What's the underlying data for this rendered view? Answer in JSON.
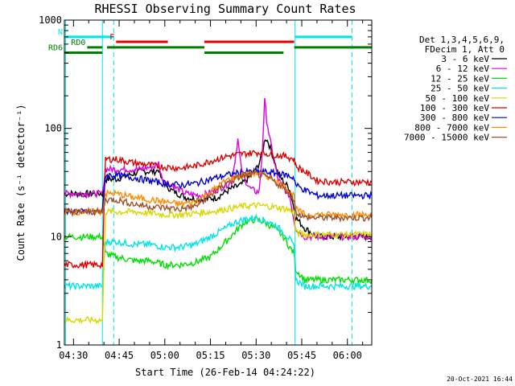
{
  "chart_data": {
    "type": "line",
    "title": "RHESSI Observing Summary Count Rates",
    "xlabel": "Start Time (26-Feb-14 04:24:22)",
    "ylabel": "Count Rate (s⁻¹ detector⁻¹)",
    "yscale": "log",
    "ylim": [
      1,
      1000
    ],
    "xlim_minutes": [
      -3,
      98
    ],
    "x_tick_labels": [
      "04:30",
      "04:45",
      "05:00",
      "05:15",
      "05:30",
      "05:45",
      "06:00"
    ],
    "x_tick_minutes": [
      0,
      15,
      30,
      45,
      60,
      75,
      90
    ],
    "y_tick_labels": [
      "1",
      "10",
      "100",
      "1000"
    ],
    "y_tick_values": [
      1,
      10,
      100,
      1000
    ],
    "legend_header": [
      "Det 1,3,4,5,6,9,",
      "FDecim 1, Att 0"
    ],
    "legend_placement": "right",
    "timestamp": "20-Oct-2021 16:44",
    "vertical_lines": [
      {
        "minute": -2.6,
        "style": "solid",
        "color": "#00e5e5"
      },
      {
        "minute": 9.5,
        "style": "solid",
        "color": "#00e5e5"
      },
      {
        "minute": 13.2,
        "style": "dashed",
        "color": "#00e5e5"
      },
      {
        "minute": 72.8,
        "style": "solid",
        "color": "#00e5e5"
      },
      {
        "minute": 91.5,
        "style": "dashed",
        "color": "#00e5e5"
      }
    ],
    "flag_bars": [
      {
        "label": "N",
        "color": "#00e5e5",
        "segments": [
          [
            -3,
            13.2
          ],
          [
            72.8,
            91.5
          ]
        ],
        "y_value": 700
      },
      {
        "label": "F",
        "color": "#e00000",
        "segments": [
          [
            14,
            31
          ],
          [
            43,
            72.5
          ]
        ],
        "y_value": 630
      },
      {
        "label": "RD0",
        "color": "#008000",
        "segments": [
          [
            4.5,
            9.5
          ],
          [
            11,
            43
          ],
          [
            72.5,
            98
          ]
        ],
        "y_value": 560
      },
      {
        "label": "RD6",
        "color": "#008000",
        "segments": [
          [
            -3,
            9.5
          ],
          [
            43,
            69
          ]
        ],
        "y_value": 500
      }
    ],
    "series": [
      {
        "name": "3 - 6 keV",
        "color": "#000000",
        "x": [
          -3,
          9.5,
          10.5,
          14,
          22,
          27,
          28,
          29,
          32,
          37,
          42,
          47,
          52,
          55,
          58,
          60,
          61,
          62,
          63,
          64,
          64.7,
          66,
          67,
          69,
          71,
          72.5,
          73,
          76,
          80,
          85,
          90,
          95,
          98
        ],
        "y": [
          25,
          25,
          34,
          34,
          40,
          40,
          42,
          33,
          27,
          23,
          22,
          23,
          28,
          30,
          36,
          42,
          48,
          60,
          82,
          75,
          65,
          50,
          40,
          32,
          28,
          18,
          15,
          12,
          10,
          10,
          10,
          10,
          10
        ]
      },
      {
        "name": "6 - 12 keV",
        "color": "#e000e0",
        "x": [
          -3,
          9.5,
          10.5,
          14,
          22,
          27,
          28,
          29,
          32,
          37,
          42,
          47,
          52,
          53,
          54,
          55,
          56,
          58,
          60,
          61,
          62,
          62.8,
          63.5,
          64.5,
          66,
          67,
          69,
          71,
          72.5,
          73,
          76,
          80,
          85,
          90,
          95,
          98
        ],
        "y": [
          25,
          25,
          42,
          42,
          42,
          45,
          48,
          35,
          30,
          25,
          24,
          27,
          32,
          50,
          80,
          45,
          35,
          28,
          26,
          26,
          60,
          180,
          120,
          80,
          50,
          35,
          28,
          24,
          14,
          12,
          10,
          10,
          10,
          10,
          10,
          10
        ]
      },
      {
        "name": "12 - 25 keV",
        "color": "#00e000",
        "x": [
          -3,
          9.5,
          10.5,
          14,
          20,
          25,
          30,
          35,
          40,
          45,
          50,
          53,
          56,
          60,
          63,
          66,
          69,
          71,
          72.5,
          73,
          76,
          80,
          85,
          90,
          95,
          98
        ],
        "y": [
          10,
          10,
          7,
          6.5,
          6,
          6,
          5.5,
          5.5,
          5.8,
          6.5,
          9,
          11,
          13.5,
          14.5,
          13.5,
          12,
          10,
          8,
          7,
          5,
          4,
          4,
          4,
          4,
          4,
          4
        ]
      },
      {
        "name": "25 - 50 keV",
        "color": "#00e5e5",
        "x": [
          -3,
          9.5,
          10.5,
          14,
          20,
          25,
          30,
          35,
          40,
          45,
          50,
          53,
          56,
          60,
          63,
          66,
          69,
          71,
          72.5,
          73,
          76,
          80,
          85,
          90,
          95,
          98
        ],
        "y": [
          3.5,
          3.5,
          9,
          9,
          8.5,
          8.5,
          8,
          8,
          8.5,
          10,
          12,
          13.5,
          14.5,
          15,
          14,
          13,
          11,
          9.5,
          8,
          4,
          3.5,
          3.5,
          3.5,
          3.5,
          3.5,
          3.5
        ]
      },
      {
        "name": "50 - 100 keV",
        "color": "#d8d800",
        "x": [
          -3,
          9.5,
          10.5,
          14,
          20,
          25,
          30,
          35,
          40,
          45,
          50,
          55,
          60,
          65,
          70,
          72.5,
          73,
          76,
          80,
          85,
          90,
          95,
          98
        ],
        "y": [
          1.7,
          1.7,
          17,
          17,
          17,
          16.5,
          16,
          16,
          16.5,
          17,
          18,
          19,
          19.5,
          19,
          18,
          17,
          11,
          10.5,
          10.5,
          10.5,
          10.5,
          10.5,
          10.5
        ]
      },
      {
        "name": "100 - 300 keV",
        "color": "#e00000",
        "x": [
          -3,
          9.5,
          10.5,
          14,
          20,
          25,
          30,
          35,
          40,
          45,
          50,
          55,
          60,
          65,
          70,
          72.5,
          73,
          76,
          80,
          85,
          90,
          95,
          98
        ],
        "y": [
          5.5,
          5.5,
          52,
          52,
          48,
          46,
          44,
          43,
          45,
          50,
          55,
          58,
          60,
          58,
          55,
          52,
          45,
          40,
          33,
          32,
          32,
          32,
          32
        ]
      },
      {
        "name": "300 - 800 keV",
        "color": "#0000d0",
        "x": [
          -3,
          9.5,
          10.5,
          14,
          20,
          25,
          30,
          35,
          40,
          45,
          50,
          55,
          60,
          65,
          70,
          72.5,
          73,
          76,
          80,
          85,
          90,
          95,
          98
        ],
        "y": [
          17,
          17,
          37,
          37,
          35,
          33,
          31,
          30,
          31,
          34,
          37,
          39,
          40,
          39,
          37,
          35,
          30,
          27,
          24,
          24,
          24,
          24,
          24
        ]
      },
      {
        "name": "800 - 7000 keV",
        "color": "#ff8c00",
        "x": [
          -3,
          9.5,
          10.5,
          14,
          20,
          25,
          30,
          35,
          40,
          45,
          50,
          55,
          60,
          65,
          70,
          72.5,
          73,
          76,
          80,
          85,
          90,
          95,
          98
        ],
        "y": [
          17,
          17,
          25,
          25,
          23,
          22,
          21,
          20,
          21,
          26,
          33,
          37,
          39,
          35,
          28,
          24,
          18,
          16,
          16,
          16,
          16,
          16,
          16
        ]
      },
      {
        "name": "7000 - 15000 keV",
        "color": "#a0522d",
        "x": [
          -3,
          9.5,
          10.5,
          14,
          20,
          25,
          30,
          35,
          40,
          45,
          50,
          55,
          60,
          65,
          70,
          72.5,
          73,
          76,
          80,
          85,
          90,
          95,
          98
        ],
        "y": [
          17,
          17,
          22,
          22,
          20,
          19,
          18.5,
          18,
          19,
          24,
          31,
          36,
          38,
          34,
          27,
          22,
          17,
          15,
          15,
          15,
          15,
          15,
          15
        ]
      }
    ]
  }
}
